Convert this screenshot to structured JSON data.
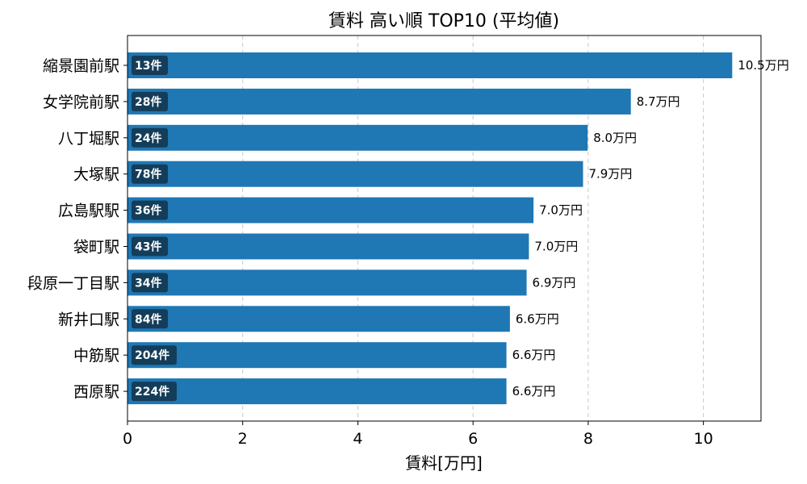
{
  "chart_data": {
    "type": "bar",
    "orientation": "horizontal",
    "title": "賃料 高い順 TOP10 (平均値)",
    "xlabel": "賃料[万円]",
    "ylabel": "",
    "xlim": [
      0,
      11
    ],
    "xticks": [
      0,
      2,
      4,
      6,
      8,
      10
    ],
    "grid": "x",
    "bar_color": "#1f77b4",
    "badge_color": "#143d59",
    "categories": [
      "縮景園前駅",
      "女学院前駅",
      "八丁堀駅",
      "大塚駅",
      "広島駅駅",
      "袋町駅",
      "段原一丁目駅",
      "新井口駅",
      "中筋駅",
      "西原駅"
    ],
    "values": [
      10.5,
      8.74,
      7.99,
      7.91,
      7.05,
      6.97,
      6.93,
      6.64,
      6.58,
      6.58
    ],
    "value_labels": [
      "10.5万円",
      "8.7万円",
      "8.0万円",
      "7.9万円",
      "7.0万円",
      "7.0万円",
      "6.9万円",
      "6.6万円",
      "6.6万円",
      "6.6万円"
    ],
    "counts": [
      "13件",
      "28件",
      "24件",
      "78件",
      "36件",
      "43件",
      "34件",
      "84件",
      "204件",
      "224件"
    ]
  }
}
